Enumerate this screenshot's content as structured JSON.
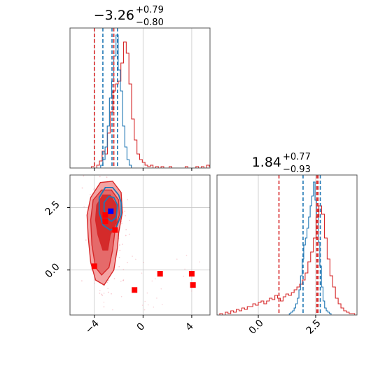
{
  "colors": {
    "red": "#d62728",
    "red_fill": "#f08080",
    "red_dark": "#d62728",
    "blue": "#1f77b4",
    "grid": "#c8c8c8",
    "marker_red": "#ff0000",
    "marker_blue": "#0000ff"
  },
  "chart_data": [
    {
      "type": "histogram",
      "panel": "top-left",
      "title_value": "−3.26",
      "title_sup": "+0.79",
      "title_sub": "−0.80",
      "xlim": [
        -6,
        5.5
      ],
      "ylim": [
        0,
        1
      ],
      "red_quantiles": [
        -4.0,
        -2.4
      ],
      "blue_quantiles": [
        -3.3,
        -2.1,
        -2.55
      ],
      "red_hist": {
        "start": -6,
        "step": 0.22,
        "heights": [
          0,
          0,
          0,
          0,
          0,
          0,
          0,
          0,
          0.01,
          0,
          0.02,
          0.05,
          0.12,
          0.1,
          0.25,
          0.4,
          0.55,
          0.6,
          0.62,
          0.75,
          0.9,
          0.82,
          0.6,
          0.35,
          0.2,
          0.1,
          0.06,
          0.04,
          0.02,
          0.01,
          0.02,
          0,
          0.01,
          0,
          0.01,
          0,
          0,
          0.01,
          0,
          0,
          0,
          0,
          0,
          0.01,
          0,
          0,
          0,
          0.01,
          0,
          0.01,
          0,
          0.02,
          0.01
        ]
      },
      "blue_hist": {
        "start": -6,
        "step": 0.18,
        "heights": [
          0,
          0,
          0,
          0,
          0,
          0,
          0,
          0,
          0,
          0,
          0,
          0,
          0,
          0,
          0.02,
          0.06,
          0.15,
          0.3,
          0.5,
          0.62,
          0.8,
          0.95,
          0.7,
          0.55,
          0.3,
          0.15,
          0.06,
          0.02,
          0,
          0,
          0,
          0,
          0,
          0,
          0,
          0,
          0,
          0,
          0,
          0,
          0,
          0,
          0,
          0,
          0,
          0,
          0,
          0,
          0,
          0,
          0,
          0,
          0,
          0,
          0,
          0,
          0,
          0,
          0,
          0,
          0,
          0,
          0,
          0
        ]
      }
    },
    {
      "type": "scatter-contour",
      "panel": "bottom-left",
      "xlim": [
        -6,
        5.5
      ],
      "ylim": [
        -1.8,
        3.8
      ],
      "x_ticks": [
        -4,
        0,
        4
      ],
      "x_tick_labels": [
        "−4",
        "0",
        "4"
      ],
      "y_ticks": [
        0.0,
        2.5
      ],
      "y_tick_labels": [
        "0.0",
        "2.5"
      ],
      "red_markers": [
        [
          -3.1,
          2.2
        ],
        [
          -3.1,
          1.95
        ],
        [
          -2.3,
          1.6
        ],
        [
          -4.0,
          0.15
        ],
        [
          1.4,
          -0.15
        ],
        [
          -0.7,
          -0.8
        ],
        [
          4.0,
          -0.15
        ],
        [
          4.1,
          -0.6
        ]
      ],
      "blue_markers": [
        [
          -2.65,
          2.35
        ]
      ],
      "red_contour_outer": [
        [
          -4.3,
          2.9
        ],
        [
          -3.5,
          3.5
        ],
        [
          -2.5,
          3.55
        ],
        [
          -1.8,
          3.1
        ],
        [
          -1.7,
          2.3
        ],
        [
          -2.0,
          1.5
        ],
        [
          -2.1,
          0.9
        ],
        [
          -2.4,
          0.0
        ],
        [
          -3.2,
          -0.6
        ],
        [
          -3.9,
          -0.4
        ],
        [
          -4.3,
          0.3
        ],
        [
          -4.5,
          1.3
        ],
        [
          -4.6,
          2.2
        ]
      ],
      "red_contour_mid": [
        [
          -4.1,
          2.8
        ],
        [
          -3.4,
          3.2
        ],
        [
          -2.6,
          3.2
        ],
        [
          -2.0,
          2.8
        ],
        [
          -1.95,
          2.2
        ],
        [
          -2.3,
          1.6
        ],
        [
          -2.5,
          0.8
        ],
        [
          -2.8,
          0.1
        ],
        [
          -3.4,
          -0.2
        ],
        [
          -3.9,
          0.1
        ],
        [
          -4.2,
          1.0
        ],
        [
          -4.3,
          2.0
        ]
      ],
      "red_contour_inner": [
        [
          -3.8,
          2.6
        ],
        [
          -3.3,
          3.0
        ],
        [
          -2.7,
          3.0
        ],
        [
          -2.2,
          2.6
        ],
        [
          -2.2,
          1.9
        ],
        [
          -2.7,
          1.4
        ],
        [
          -2.9,
          0.8
        ],
        [
          -3.3,
          0.8
        ],
        [
          -3.7,
          1.4
        ],
        [
          -3.9,
          2.0
        ]
      ],
      "blue_contour_outer": [
        [
          -3.6,
          2.9
        ],
        [
          -3.1,
          3.3
        ],
        [
          -2.5,
          3.3
        ],
        [
          -2.0,
          3.0
        ],
        [
          -1.8,
          2.7
        ],
        [
          -1.8,
          2.2
        ],
        [
          -2.2,
          1.7
        ],
        [
          -2.7,
          1.6
        ],
        [
          -3.3,
          1.8
        ],
        [
          -3.6,
          2.3
        ]
      ],
      "blue_contour_inner": [
        [
          -3.2,
          2.7
        ],
        [
          -2.8,
          2.95
        ],
        [
          -2.4,
          2.9
        ],
        [
          -2.1,
          2.6
        ],
        [
          -2.2,
          2.1
        ],
        [
          -2.6,
          1.95
        ],
        [
          -3.0,
          2.1
        ],
        [
          -3.2,
          2.4
        ]
      ]
    },
    {
      "type": "histogram",
      "panel": "bottom-right",
      "title_value": "1.84",
      "title_sup": "+0.77",
      "title_sub": "−0.93",
      "xlim": [
        -1.8,
        4.3
      ],
      "ylim": [
        0,
        1
      ],
      "x_ticks": [
        0.0,
        2.5
      ],
      "x_tick_labels": [
        "0.0",
        "2.5"
      ],
      "red_quantiles": [
        0.9,
        2.6,
        2.55
      ],
      "blue_quantiles": [
        1.95,
        2.7
      ],
      "red_hist": {
        "start": -1.8,
        "step": 0.12,
        "heights": [
          0,
          0.01,
          0,
          0.02,
          0.01,
          0.03,
          0.02,
          0.04,
          0.03,
          0.05,
          0.04,
          0.06,
          0.06,
          0.08,
          0.07,
          0.09,
          0.1,
          0.08,
          0.1,
          0.12,
          0.11,
          0.14,
          0.12,
          0.1,
          0.13,
          0.15,
          0.14,
          0.16,
          0.18,
          0.2,
          0.22,
          0.25,
          0.3,
          0.38,
          0.45,
          0.55,
          0.7,
          0.78,
          0.72,
          0.55,
          0.4,
          0.28,
          0.2,
          0.12,
          0.08,
          0.05,
          0.03,
          0.02,
          0.01,
          0.01,
          0,
          0
        ]
      },
      "blue_hist": {
        "start": -1.8,
        "step": 0.07,
        "heights": [
          0,
          0,
          0,
          0,
          0,
          0,
          0,
          0,
          0,
          0,
          0,
          0,
          0,
          0,
          0,
          0,
          0,
          0,
          0,
          0,
          0,
          0,
          0,
          0,
          0,
          0,
          0,
          0,
          0,
          0,
          0,
          0,
          0,
          0,
          0,
          0,
          0,
          0,
          0,
          0,
          0,
          0,
          0,
          0,
          0,
          0.01,
          0.02,
          0.03,
          0.05,
          0.08,
          0.12,
          0.18,
          0.28,
          0.4,
          0.5,
          0.55,
          0.62,
          0.7,
          0.78,
          0.85,
          0.95,
          0.82,
          0.7,
          0.52,
          0.35,
          0.2,
          0.1,
          0.05,
          0.03,
          0.02,
          0.01,
          0,
          0,
          0,
          0,
          0,
          0,
          0,
          0,
          0,
          0,
          0,
          0,
          0,
          0,
          0,
          0
        ]
      }
    }
  ]
}
